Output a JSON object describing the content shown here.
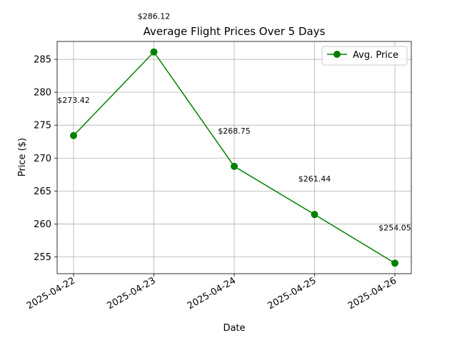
{
  "chart_data": {
    "type": "line",
    "title": "Average Flight Prices Over 5 Days",
    "xlabel": "Date",
    "ylabel": "Price ($)",
    "categories": [
      "2025-04-22",
      "2025-04-23",
      "2025-04-24",
      "2025-04-25",
      "2025-04-26"
    ],
    "series": [
      {
        "name": "Avg. Price",
        "values": [
          273.42,
          286.12,
          268.75,
          261.44,
          254.05
        ],
        "color": "#008000",
        "marker": "circle"
      }
    ],
    "data_labels": [
      "$273.42",
      "$286.12",
      "$268.75",
      "$261.44",
      "$254.05"
    ],
    "y_ticks": [
      255,
      260,
      265,
      270,
      275,
      280,
      285
    ],
    "ylim": [
      252.45,
      287.72
    ],
    "grid": true,
    "legend_position": "top-right"
  }
}
